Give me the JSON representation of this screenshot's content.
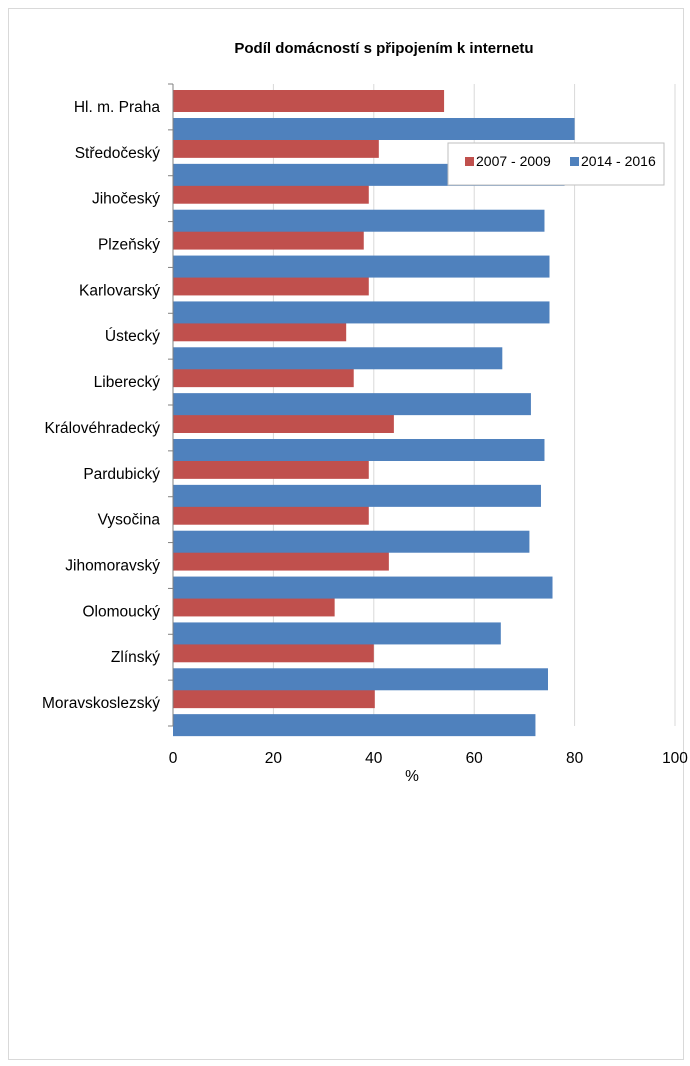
{
  "chart_data": {
    "type": "bar",
    "orientation": "horizontal",
    "title": "Podíl domácností s připojením k internetu",
    "xlabel": "%",
    "ylabel": "",
    "xlim": [
      0,
      100
    ],
    "x_ticks": [
      "0",
      "20",
      "40",
      "60",
      "80",
      "100"
    ],
    "grid": "vertical",
    "legend_position": "top-right",
    "categories": [
      "Hl. m. Praha",
      "Středočeský",
      "Jihočeský",
      "Plzeňský",
      "Karlovarský",
      "Ústecký",
      "Liberecký",
      "Královéhradecký",
      "Pardubický",
      "Vysočina",
      "Jihomoravský",
      "Olomoucký",
      "Zlínský",
      "Moravskoslezský"
    ],
    "series": [
      {
        "name": "2007 - 2009",
        "color": "#c0504d",
        "values": [
          54,
          41,
          39,
          38,
          39,
          34.5,
          36,
          44,
          39,
          39,
          43,
          32.2,
          40,
          40.2
        ]
      },
      {
        "name": "2014 - 2016",
        "color": "#4f81bd",
        "values": [
          80,
          78,
          74,
          75,
          75,
          65.6,
          71.3,
          74,
          73.3,
          71,
          75.6,
          65.3,
          74.7,
          72.2
        ]
      }
    ]
  }
}
